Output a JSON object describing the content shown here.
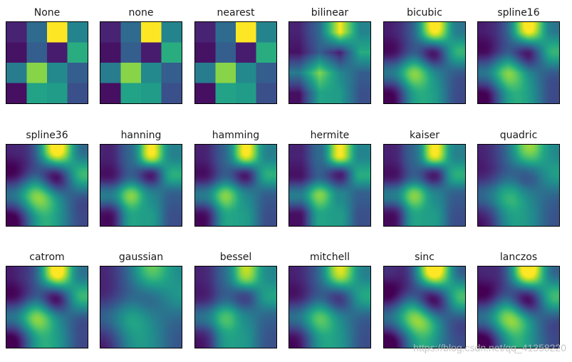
{
  "chart_data": {
    "type": "heatmap",
    "colormap": "viridis",
    "grid": [
      [
        0.1,
        0.35,
        1.0,
        0.45
      ],
      [
        0.05,
        0.3,
        0.08,
        0.62
      ],
      [
        0.42,
        0.82,
        0.47,
        0.3
      ],
      [
        0.04,
        0.58,
        0.55,
        0.25
      ]
    ],
    "panels": [
      {
        "title": "None",
        "method": "none"
      },
      {
        "title": "none",
        "method": "none"
      },
      {
        "title": "nearest",
        "method": "nearest"
      },
      {
        "title": "bilinear",
        "method": "bilinear"
      },
      {
        "title": "bicubic",
        "method": "bicubic"
      },
      {
        "title": "spline16",
        "method": "spline16"
      },
      {
        "title": "spline36",
        "method": "spline36"
      },
      {
        "title": "hanning",
        "method": "hanning"
      },
      {
        "title": "hamming",
        "method": "hamming"
      },
      {
        "title": "hermite",
        "method": "hermite"
      },
      {
        "title": "kaiser",
        "method": "kaiser"
      },
      {
        "title": "quadric",
        "method": "quadric"
      },
      {
        "title": "catrom",
        "method": "catrom"
      },
      {
        "title": "gaussian",
        "method": "gaussian"
      },
      {
        "title": "bessel",
        "method": "bessel"
      },
      {
        "title": "mitchell",
        "method": "mitchell"
      },
      {
        "title": "sinc",
        "method": "sinc"
      },
      {
        "title": "lanczos",
        "method": "lanczos"
      }
    ]
  },
  "watermark": "https://blog.csdn.net/qq_41358220"
}
